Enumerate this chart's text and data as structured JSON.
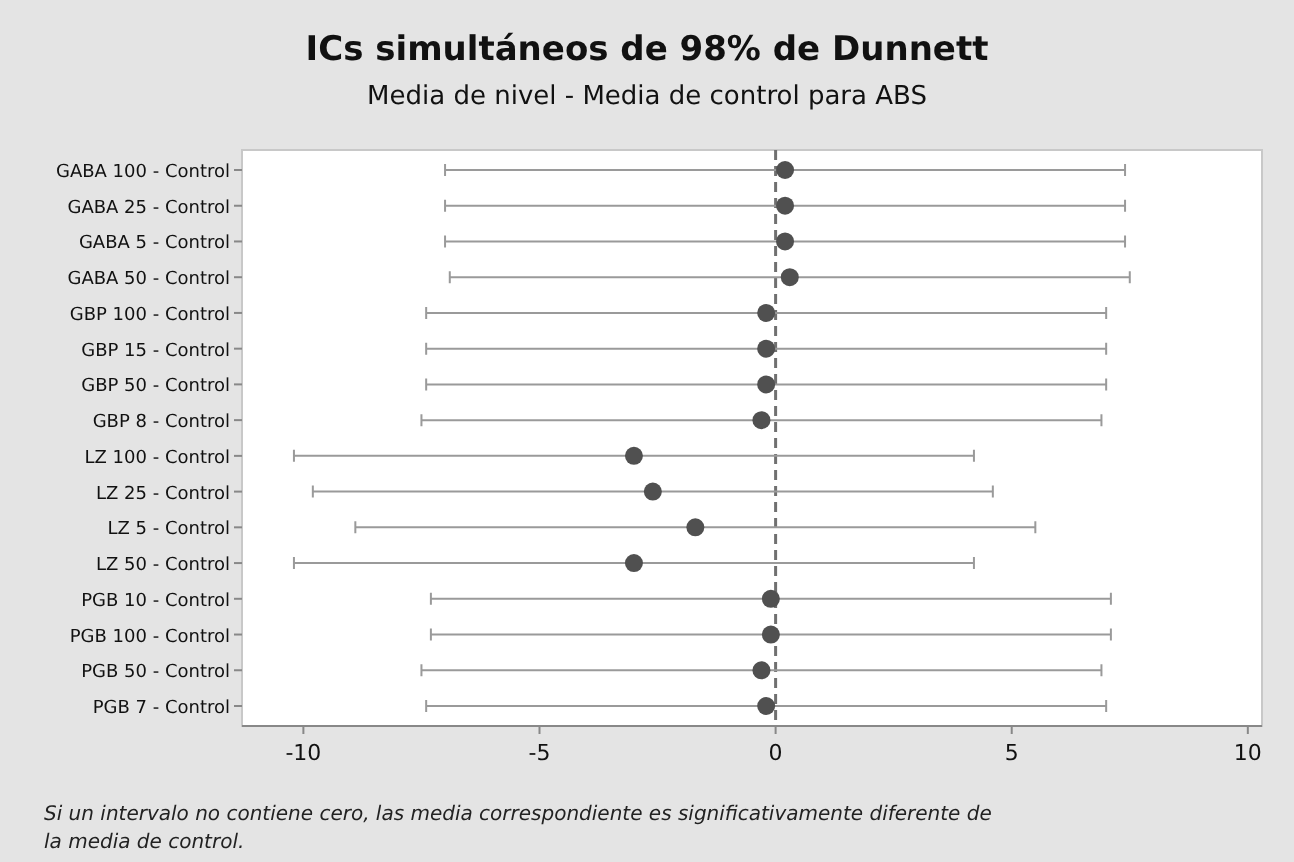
{
  "chart_data": {
    "type": "scatter",
    "title": "ICs simultáneos de 98% de Dunnett",
    "subtitle": "Media de nivel - Media de control para ABS",
    "orientation": "horizontal",
    "categories": [
      "GABA 100 - Control",
      "GABA 25 - Control",
      "GABA 5 - Control",
      "GABA 50 - Control",
      "GBP 100 - Control",
      "GBP 15 - Control",
      "GBP 50 - Control",
      "GBP 8 - Control",
      "LZ 100 - Control",
      "LZ 25 - Control",
      "LZ 5 - Control",
      "LZ 50 - Control",
      "PGB 10 - Control",
      "PGB 100 - Control",
      "PGB 50 - Control",
      "PGB 7 - Control"
    ],
    "values": [
      0.2,
      0.2,
      0.2,
      0.3,
      -0.2,
      -0.2,
      -0.2,
      -0.3,
      -3.0,
      -2.6,
      -1.7,
      -3.0,
      -0.1,
      -0.1,
      -0.3,
      -0.2
    ],
    "errors": [
      7.2,
      7.2,
      7.2,
      7.2,
      7.2,
      7.2,
      7.2,
      7.2,
      7.2,
      7.2,
      7.2,
      7.2,
      7.2,
      7.2,
      7.2,
      7.2
    ],
    "color": "#505050",
    "marker": "circle",
    "grid": false,
    "xlim": [
      -11.3,
      10.3
    ],
    "xticks": [
      -10,
      -5,
      0,
      5,
      10
    ],
    "ref_lines": [
      {
        "axis": "x",
        "value": 0,
        "line_style": "dashed",
        "color": "#707070"
      }
    ],
    "annotations": [
      "Si un intervalo no contiene cero, las media correspondiente es significativamente diferente de la media de control."
    ]
  }
}
